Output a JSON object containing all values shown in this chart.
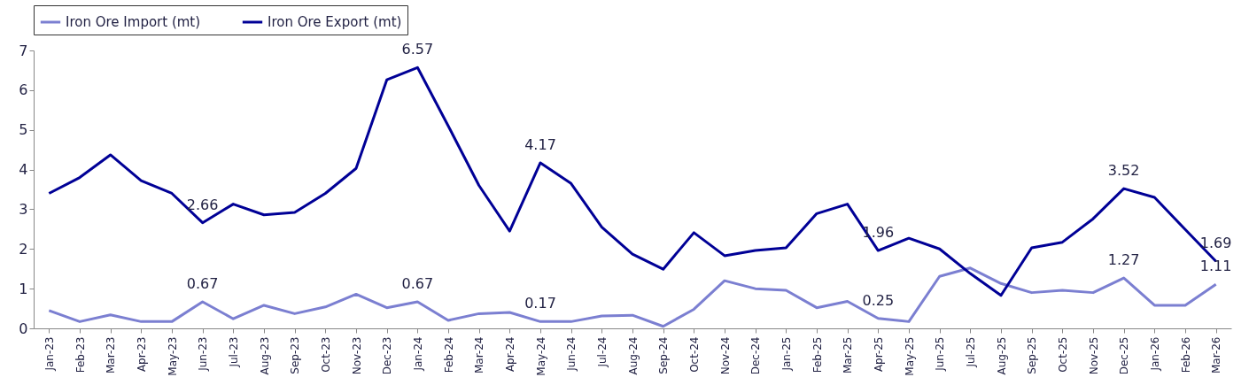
{
  "chart_data": {
    "type": "line",
    "categories": [
      "Jan-23",
      "Feb-23",
      "Mar-23",
      "Apr-23",
      "May-23",
      "Jun-23",
      "Jul-23",
      "Aug-23",
      "Sep-23",
      "Oct-23",
      "Nov-23",
      "Dec-23",
      "Jan-24",
      "Feb-24",
      "Mar-24",
      "Apr-24",
      "May-24",
      "Jun-24",
      "Jul-24",
      "Aug-24",
      "Sep-24",
      "Oct-24",
      "Nov-24",
      "Dec-24",
      "Jan-25",
      "Feb-25",
      "Mar-25",
      "Apr-25",
      "May-25",
      "Jun-25",
      "Jul-25",
      "Aug-25",
      "Sep-25",
      "Oct-25",
      "Nov-25",
      "Dec-25",
      "Jan-26",
      "Feb-26",
      "Mar-26"
    ],
    "series": [
      {
        "name": "Iron Ore Import (mt)",
        "color": "#7b7fd1",
        "values": [
          0.45,
          0.17,
          0.34,
          0.17,
          0.17,
          0.67,
          0.24,
          0.58,
          0.37,
          0.54,
          0.86,
          0.52,
          0.67,
          0.2,
          0.37,
          0.4,
          0.17,
          0.17,
          0.31,
          0.33,
          0.05,
          0.48,
          1.2,
          1.0,
          0.96,
          0.52,
          0.68,
          0.25,
          0.17,
          1.31,
          1.52,
          1.13,
          0.9,
          0.96,
          0.9,
          1.27,
          0.58,
          0.58,
          1.11
        ],
        "value_labels": [
          null,
          null,
          null,
          null,
          null,
          "0.67",
          null,
          null,
          null,
          null,
          null,
          null,
          "0.67",
          null,
          null,
          null,
          "0.17",
          null,
          null,
          null,
          null,
          null,
          null,
          null,
          null,
          null,
          null,
          "0.25",
          null,
          null,
          null,
          null,
          null,
          null,
          null,
          "1.27",
          null,
          null,
          "1.11"
        ]
      },
      {
        "name": "Iron Ore Export (mt)",
        "color": "#000096",
        "values": [
          3.4,
          3.8,
          4.37,
          3.72,
          3.4,
          2.66,
          3.13,
          2.86,
          2.92,
          3.4,
          4.03,
          6.26,
          6.57,
          5.1,
          3.6,
          2.45,
          4.17,
          3.65,
          2.55,
          1.87,
          1.49,
          2.41,
          1.83,
          1.96,
          2.03,
          2.89,
          3.13,
          1.96,
          2.27,
          2.0,
          1.38,
          0.83,
          2.03,
          2.17,
          2.76,
          3.52,
          3.3,
          2.49,
          1.69
        ],
        "value_labels": [
          null,
          null,
          null,
          null,
          null,
          "2.66",
          null,
          null,
          null,
          null,
          null,
          null,
          "6.57",
          null,
          null,
          null,
          "4.17",
          null,
          null,
          null,
          null,
          null,
          null,
          null,
          null,
          null,
          null,
          "1.96",
          null,
          null,
          null,
          null,
          null,
          null,
          null,
          "3.52",
          null,
          null,
          "1.69"
        ]
      }
    ],
    "ylim": [
      0,
      7
    ],
    "yticks": [
      0,
      1,
      2,
      3,
      4,
      5,
      6,
      7
    ],
    "grid": false,
    "legend": "top",
    "marker": "none",
    "line_style": "solid"
  }
}
